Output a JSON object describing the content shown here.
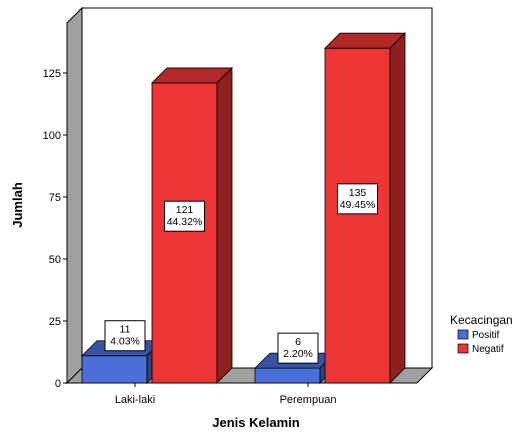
{
  "chart_data": {
    "type": "bar",
    "categories": [
      "Laki-laki",
      "Perempuan"
    ],
    "series": [
      {
        "name": "Positif",
        "values": [
          11,
          6
        ],
        "labels": [
          "4.03%",
          "2.20%"
        ],
        "color": "#4a6fd8"
      },
      {
        "name": "Negatif",
        "values": [
          121,
          135
        ],
        "labels": [
          "44.32%",
          "49.45%"
        ],
        "color": "#ee3535"
      }
    ],
    "xlabel": "Jenis Kelamin",
    "ylabel": "Jumlah",
    "ylim": [
      0,
      150
    ],
    "yticks": [
      0,
      25,
      50,
      75,
      100,
      125
    ],
    "legend_title": "Kecacingan",
    "legend_position": "right",
    "grid": false,
    "style": "3d"
  }
}
